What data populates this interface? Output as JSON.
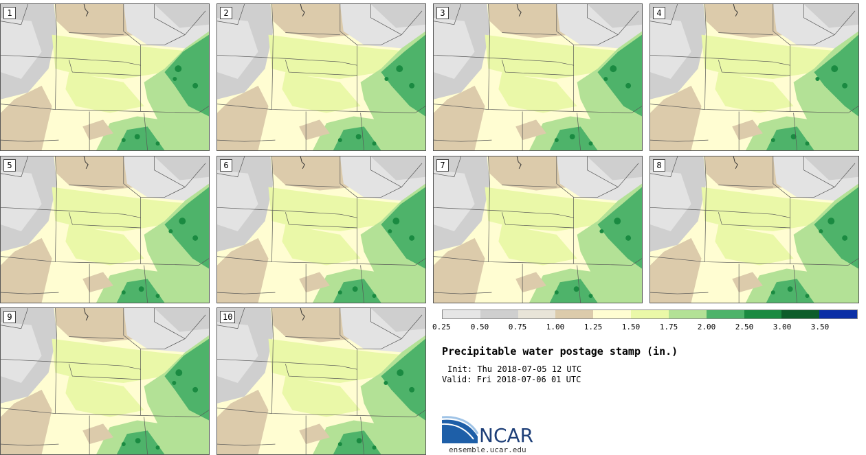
{
  "panels": [
    {
      "label": "1"
    },
    {
      "label": "2"
    },
    {
      "label": "3"
    },
    {
      "label": "4"
    },
    {
      "label": "5"
    },
    {
      "label": "6"
    },
    {
      "label": "7"
    },
    {
      "label": "8"
    },
    {
      "label": "9"
    },
    {
      "label": "10"
    }
  ],
  "colorbar": {
    "colors": [
      "#e6e6e6",
      "#cfcfcf",
      "#e8e4d8",
      "#dccbab",
      "#fffdd2",
      "#eaf8a8",
      "#b3e196",
      "#4eb36a",
      "#1a8a41",
      "#0d5d2a",
      "#0b2fa6"
    ],
    "ticks": [
      "0.25",
      "0.50",
      "0.75",
      "1.00",
      "1.25",
      "1.50",
      "1.75",
      "2.00",
      "2.50",
      "3.00",
      "3.50"
    ]
  },
  "title": "Precipitable water postage stamp (in.)",
  "init": "Init: Thu 2018-07-05 12 UTC",
  "valid": "Valid: Fri 2018-07-06 01 UTC",
  "logo": {
    "text": "NCAR",
    "url": "ensemble.ucar.edu"
  }
}
